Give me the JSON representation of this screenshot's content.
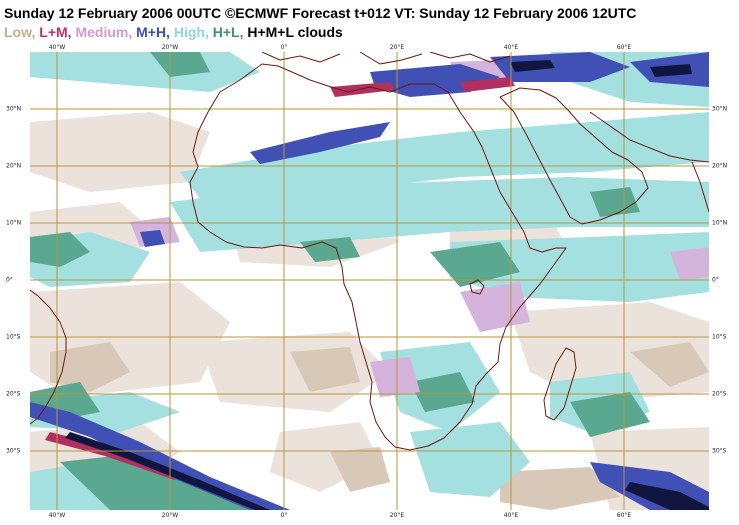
{
  "title": "Sunday 12 February 2006 00UTC ©ECMWF Forecast t+012 VT: Sunday 12 February 2006 12UTC",
  "legend": [
    {
      "label": "Low,",
      "color": "#c8ad8f"
    },
    {
      "label": "L+M,",
      "color": "#c0306a"
    },
    {
      "label": "Medium,",
      "color": "#cf9ccf"
    },
    {
      "label": "M+H,",
      "color": "#3a4fb0"
    },
    {
      "label": "High,",
      "color": "#8fd6d6"
    },
    {
      "label": "H+L,",
      "color": "#3f9470"
    },
    {
      "label": "H+M+L clouds",
      "color": "#000000"
    }
  ],
  "axes": {
    "top_longitudes": [
      "40°W",
      "20°W",
      "0°",
      "20°E",
      "40°E",
      "60°E"
    ],
    "bottom_longitudes": [
      "40°W",
      "20°W",
      "0°",
      "20°E",
      "40°E",
      "60°E"
    ],
    "left_latitudes": [
      "30°N",
      "20°N",
      "10°N",
      "0°",
      "10°S",
      "20°S",
      "30°S"
    ],
    "right_latitudes": [
      "30°N",
      "20°N",
      "10°N",
      "0°",
      "10°S",
      "20°S",
      "30°S"
    ]
  },
  "map_colors": {
    "background": "#ffffff",
    "low": "#d8c8b8",
    "low_light": "#ebe2dc",
    "lm": "#b23060",
    "medium": "#d4b4dc",
    "mh": "#4050b4",
    "high": "#a4e0e0",
    "hl": "#5aa890",
    "hml": "#101640",
    "coast": "#6a1a10",
    "grid": "#b8963c"
  }
}
